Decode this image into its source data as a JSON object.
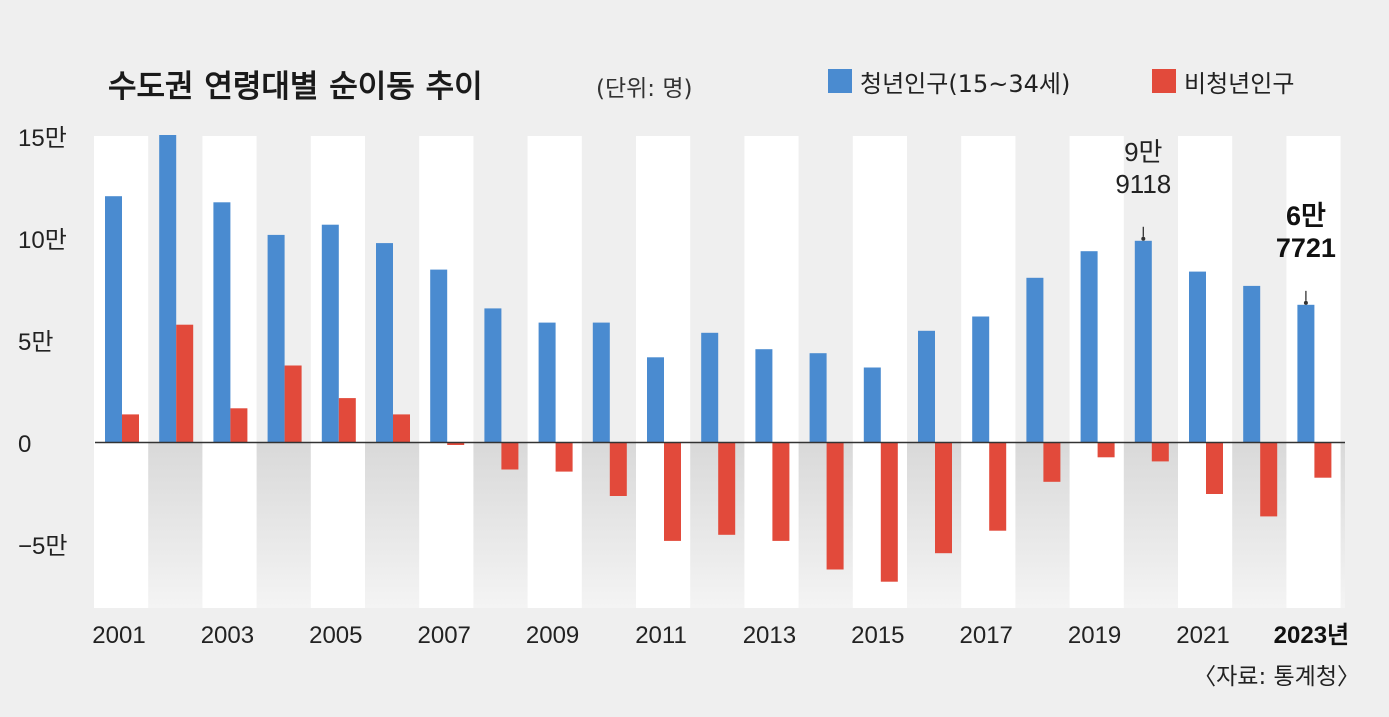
{
  "chart_data": {
    "type": "bar",
    "title": "수도권 연령대별 순이동 추이",
    "unit_label": "(단위: 명)",
    "source": "〈자료: 통계청〉",
    "years": [
      2001,
      2002,
      2003,
      2004,
      2005,
      2006,
      2007,
      2008,
      2009,
      2010,
      2011,
      2012,
      2013,
      2014,
      2015,
      2016,
      2017,
      2018,
      2019,
      2020,
      2021,
      2022,
      2023
    ],
    "x_tick_labels": [
      "2001",
      "2003",
      "2005",
      "2007",
      "2009",
      "2011",
      "2013",
      "2015",
      "2017",
      "2019",
      "2021",
      "2023년"
    ],
    "y_ticks": [
      {
        "value": 150000,
        "label": "15만"
      },
      {
        "value": 100000,
        "label": "10만"
      },
      {
        "value": 50000,
        "label": "5만"
      },
      {
        "value": 0,
        "label": "0"
      },
      {
        "value": -50000,
        "label": "−5만"
      }
    ],
    "ylim": [
      -80000,
      155000
    ],
    "series": [
      {
        "name": "청년인구(15~34세)",
        "color": "#4a8bd0",
        "values": [
          121000,
          151000,
          118000,
          102000,
          107000,
          98000,
          85000,
          66000,
          59000,
          59000,
          42000,
          54000,
          46000,
          44000,
          37000,
          55000,
          62000,
          81000,
          94000,
          99118,
          84000,
          77000,
          67721
        ]
      },
      {
        "name": "비청년인구",
        "color": "#e24a3b",
        "values": [
          14000,
          58000,
          17000,
          38000,
          22000,
          14000,
          -1000,
          -13000,
          -14000,
          -26000,
          -48000,
          -45000,
          -48000,
          -62000,
          -68000,
          -54000,
          -43000,
          -19000,
          -7000,
          -9000,
          -25000,
          -36000,
          -17000
        ]
      }
    ],
    "annotations": [
      {
        "year": 2020,
        "lines": [
          "9만",
          "9118"
        ],
        "bold": false
      },
      {
        "year": 2023,
        "lines": [
          "6만",
          "7721"
        ],
        "bold": true
      }
    ]
  }
}
